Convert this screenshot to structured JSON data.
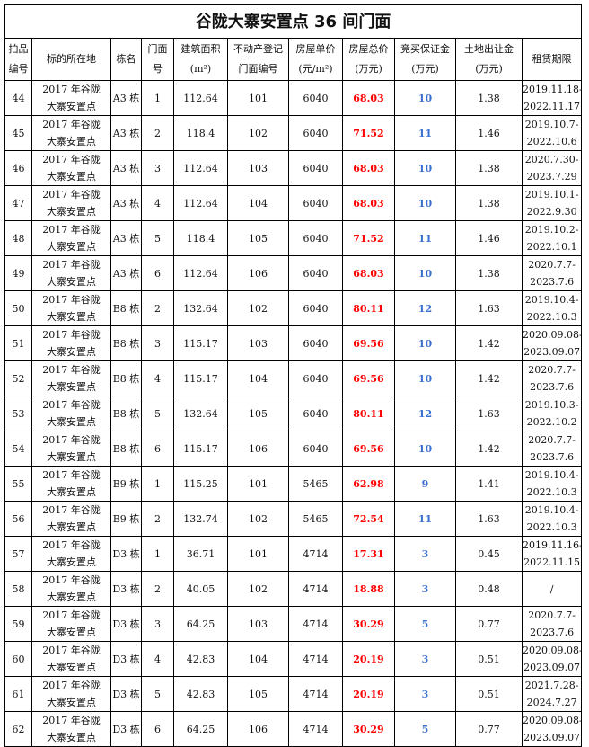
{
  "title": "谷陇大寨安置点 36 间门面",
  "headers": [
    [
      "拍品",
      "编号"
    ],
    [
      "标的所在地"
    ],
    [
      "栋名"
    ],
    [
      "门面",
      "号"
    ],
    [
      "建筑面积",
      "(m²)"
    ],
    [
      "不动产登记",
      "门面编号"
    ],
    [
      "房屋单价",
      "(元/m²)"
    ],
    [
      "房屋总价",
      "(万元)"
    ],
    [
      "竞买保证金",
      "(万元)"
    ],
    [
      "土地出让金",
      "(万元)"
    ],
    [
      "租赁期限"
    ]
  ],
  "colors": {
    "total_price": "#ff0000",
    "deposit": "#3a6fd0"
  },
  "rows": [
    {
      "no": "44",
      "loc1": "2017 年谷陇",
      "loc2": "大寨安置点",
      "bld": "A3 栋",
      "door": "1",
      "area": "112.64",
      "reg": "101",
      "unit": "6040",
      "total": "68.03",
      "dep": "10",
      "land": "1.38",
      "lease1": "2019.11.18-",
      "lease2": "2022.11.17"
    },
    {
      "no": "45",
      "loc1": "2017 年谷陇",
      "loc2": "大寨安置点",
      "bld": "A3 栋",
      "door": "2",
      "area": "118.4",
      "reg": "102",
      "unit": "6040",
      "total": "71.52",
      "dep": "11",
      "land": "1.46",
      "lease1": "2019.10.7-",
      "lease2": "2022.10.6"
    },
    {
      "no": "46",
      "loc1": "2017 年谷陇",
      "loc2": "大寨安置点",
      "bld": "A3 栋",
      "door": "3",
      "area": "112.64",
      "reg": "103",
      "unit": "6040",
      "total": "68.03",
      "dep": "10",
      "land": "1.38",
      "lease1": "2020.7.30-",
      "lease2": "2023.7.29"
    },
    {
      "no": "47",
      "loc1": "2017 年谷陇",
      "loc2": "大寨安置点",
      "bld": "A3 栋",
      "door": "4",
      "area": "112.64",
      "reg": "104",
      "unit": "6040",
      "total": "68.03",
      "dep": "10",
      "land": "1.38",
      "lease1": "2019.10.1-",
      "lease2": "2022.9.30"
    },
    {
      "no": "48",
      "loc1": "2017 年谷陇",
      "loc2": "大寨安置点",
      "bld": "A3 栋",
      "door": "5",
      "area": "118.4",
      "reg": "105",
      "unit": "6040",
      "total": "71.52",
      "dep": "11",
      "land": "1.46",
      "lease1": "2019.10.2-",
      "lease2": "2022.10.1"
    },
    {
      "no": "49",
      "loc1": "2017 年谷陇",
      "loc2": "大寨安置点",
      "bld": "A3 栋",
      "door": "6",
      "area": "112.64",
      "reg": "106",
      "unit": "6040",
      "total": "68.03",
      "dep": "10",
      "land": "1.38",
      "lease1": "2020.7.7-",
      "lease2": "2023.7.6"
    },
    {
      "no": "50",
      "loc1": "2017 年谷陇",
      "loc2": "大寨安置点",
      "bld": "B8 栋",
      "door": "2",
      "area": "132.64",
      "reg": "102",
      "unit": "6040",
      "total": "80.11",
      "dep": "12",
      "land": "1.63",
      "lease1": "2019.10.4-",
      "lease2": "2022.10.3"
    },
    {
      "no": "51",
      "loc1": "2017 年谷陇",
      "loc2": "大寨安置点",
      "bld": "B8 栋",
      "door": "3",
      "area": "115.17",
      "reg": "103",
      "unit": "6040",
      "total": "69.56",
      "dep": "10",
      "land": "1.42",
      "lease1": "2020.09.08-",
      "lease2": "2023.09.07"
    },
    {
      "no": "52",
      "loc1": "2017 年谷陇",
      "loc2": "大寨安置点",
      "bld": "B8 栋",
      "door": "4",
      "area": "115.17",
      "reg": "104",
      "unit": "6040",
      "total": "69.56",
      "dep": "10",
      "land": "1.42",
      "lease1": "2020.7.7-",
      "lease2": "2023.7.6"
    },
    {
      "no": "53",
      "loc1": "2017 年谷陇",
      "loc2": "大寨安置点",
      "bld": "B8 栋",
      "door": "5",
      "area": "132.64",
      "reg": "105",
      "unit": "6040",
      "total": "80.11",
      "dep": "12",
      "land": "1.63",
      "lease1": "2019.10.3-",
      "lease2": "2022.10.2"
    },
    {
      "no": "54",
      "loc1": "2017 年谷陇",
      "loc2": "大寨安置点",
      "bld": "B8 栋",
      "door": "6",
      "area": "115.17",
      "reg": "106",
      "unit": "6040",
      "total": "69.56",
      "dep": "10",
      "land": "1.42",
      "lease1": "2020.7.7-",
      "lease2": "2023.7.6"
    },
    {
      "no": "55",
      "loc1": "2017 年谷陇",
      "loc2": "大寨安置点",
      "bld": "B9 栋",
      "door": "1",
      "area": "115.25",
      "reg": "101",
      "unit": "5465",
      "total": "62.98",
      "dep": "9",
      "land": "1.41",
      "lease1": "2019.10.4-",
      "lease2": "2022.10.3"
    },
    {
      "no": "56",
      "loc1": "2017 年谷陇",
      "loc2": "大寨安置点",
      "bld": "B9 栋",
      "door": "2",
      "area": "132.74",
      "reg": "102",
      "unit": "5465",
      "total": "72.54",
      "dep": "11",
      "land": "1.63",
      "lease1": "2019.10.4-",
      "lease2": "2022.10.3"
    },
    {
      "no": "57",
      "loc1": "2017 年谷陇",
      "loc2": "大寨安置点",
      "bld": "D3 栋",
      "door": "1",
      "area": "36.71",
      "reg": "101",
      "unit": "4714",
      "total": "17.31",
      "dep": "3",
      "land": "0.45",
      "lease1": "2019.11.16-",
      "lease2": "2022.11.15"
    },
    {
      "no": "58",
      "loc1": "2017 年谷陇",
      "loc2": "大寨安置点",
      "bld": "D3 栋",
      "door": "2",
      "area": "40.05",
      "reg": "102",
      "unit": "4714",
      "total": "18.88",
      "dep": "3",
      "land": "0.48",
      "lease1": "/",
      "lease2": ""
    },
    {
      "no": "59",
      "loc1": "2017 年谷陇",
      "loc2": "大寨安置点",
      "bld": "D3 栋",
      "door": "3",
      "area": "64.25",
      "reg": "103",
      "unit": "4714",
      "total": "30.29",
      "dep": "5",
      "land": "0.77",
      "lease1": "2020.7.7-",
      "lease2": "2023.7.6"
    },
    {
      "no": "60",
      "loc1": "2017 年谷陇",
      "loc2": "大寨安置点",
      "bld": "D3 栋",
      "door": "4",
      "area": "42.83",
      "reg": "104",
      "unit": "4714",
      "total": "20.19",
      "dep": "3",
      "land": "0.51",
      "lease1": "2020.09.08-",
      "lease2": "2023.09.07"
    },
    {
      "no": "61",
      "loc1": "2017 年谷陇",
      "loc2": "大寨安置点",
      "bld": "D3 栋",
      "door": "5",
      "area": "42.83",
      "reg": "105",
      "unit": "4714",
      "total": "20.19",
      "dep": "3",
      "land": "0.51",
      "lease1": "2021.7.28-",
      "lease2": "2024.7.27"
    },
    {
      "no": "62",
      "loc1": "2017 年谷陇",
      "loc2": "大寨安置点",
      "bld": "D3 栋",
      "door": "6",
      "area": "64.25",
      "reg": "106",
      "unit": "4714",
      "total": "30.29",
      "dep": "5",
      "land": "0.77",
      "lease1": "2020.09.08-",
      "lease2": "2023.09.07"
    }
  ]
}
